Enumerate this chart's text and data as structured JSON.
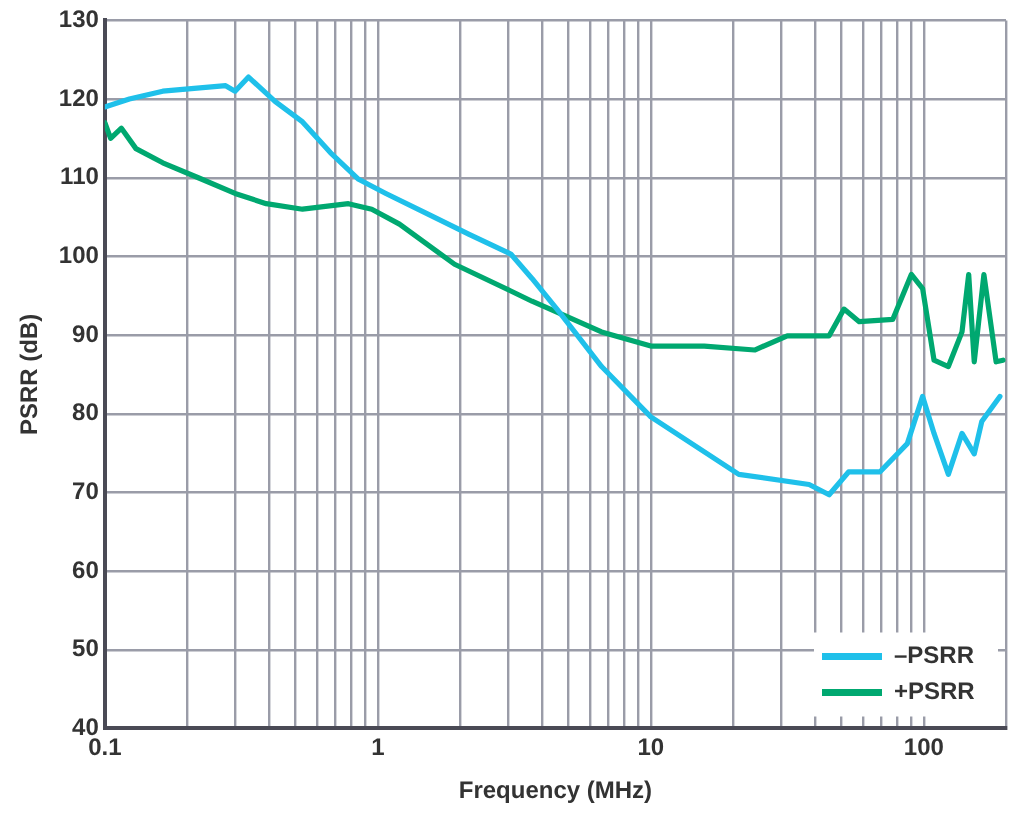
{
  "chart_data": {
    "type": "line",
    "xlabel": "Frequency (MHz)",
    "ylabel": "PSRR (dB)",
    "log": "x",
    "xlim": [
      0.1,
      200
    ],
    "ylim": [
      40,
      130
    ],
    "xticks": [
      0.1,
      {
        "value": 0.2,
        "label": null
      },
      {
        "value": 0.3,
        "label": null
      },
      {
        "value": 0.4,
        "label": null
      },
      {
        "value": 0.5,
        "label": null
      },
      {
        "value": 0.6,
        "label": null
      },
      {
        "value": 0.7,
        "label": null
      },
      {
        "value": 0.8,
        "label": null
      },
      {
        "value": 0.9,
        "label": null
      },
      1,
      {
        "value": 2,
        "label": null
      },
      {
        "value": 3,
        "label": null
      },
      {
        "value": 4,
        "label": null
      },
      {
        "value": 5,
        "label": null
      },
      {
        "value": 6,
        "label": null
      },
      {
        "value": 7,
        "label": null
      },
      {
        "value": 8,
        "label": null
      },
      {
        "value": 9,
        "label": null
      },
      10,
      {
        "value": 20,
        "label": null
      },
      {
        "value": 30,
        "label": null
      },
      {
        "value": 40,
        "label": null
      },
      {
        "value": 50,
        "label": null
      },
      {
        "value": 60,
        "label": null
      },
      {
        "value": 70,
        "label": null
      },
      {
        "value": 80,
        "label": null
      },
      {
        "value": 90,
        "label": null
      },
      100,
      {
        "value": 200,
        "label": null
      }
    ],
    "yticks": [
      40,
      50,
      60,
      70,
      80,
      90,
      100,
      110,
      120,
      130
    ],
    "grid": true,
    "legend": "bottom right",
    "marker": "none",
    "line_style": "solid",
    "series": [
      {
        "name": "–PSRR",
        "color": "#1fc0ea",
        "x": [
          0.1,
          0.123,
          0.163,
          0.277,
          0.3,
          0.336,
          0.42,
          0.53,
          0.67,
          0.85,
          1.07,
          1.52,
          2.16,
          3.07,
          3.67,
          4.6,
          6.6,
          10,
          21,
          38,
          45,
          53,
          69,
          87,
          99,
          109,
          123,
          138,
          153,
          163,
          190
        ],
        "values": [
          119,
          120,
          121,
          121.7,
          121,
          122.8,
          119.7,
          117.1,
          113.2,
          109.8,
          108,
          105.4,
          102.8,
          100.3,
          97.2,
          93,
          86,
          79.6,
          72.3,
          71,
          69.7,
          72.6,
          72.6,
          76.2,
          82.2,
          77.5,
          72.3,
          77.5,
          74.9,
          79,
          82.2
        ]
      },
      {
        "name": "+PSRR",
        "color": "#00a870",
        "x": [
          0.1,
          0.105,
          0.115,
          0.13,
          0.163,
          0.22,
          0.3,
          0.39,
          0.53,
          0.78,
          0.95,
          1.2,
          1.91,
          3.07,
          3.67,
          6.6,
          10,
          15.7,
          24,
          31.6,
          45,
          51,
          58,
          77,
          90,
          99,
          109,
          123,
          138,
          146,
          153,
          166,
          184,
          195
        ],
        "values": [
          117,
          115,
          116.3,
          113.7,
          111.9,
          110,
          108,
          106.7,
          106,
          106.7,
          106,
          104.1,
          99,
          95.6,
          94.3,
          90.4,
          88.6,
          88.6,
          88.1,
          89.9,
          89.9,
          93.3,
          91.7,
          92,
          97.7,
          95.9,
          86.8,
          86,
          90.4,
          97.7,
          86.6,
          97.7,
          86.6,
          86.8
        ]
      }
    ]
  }
}
